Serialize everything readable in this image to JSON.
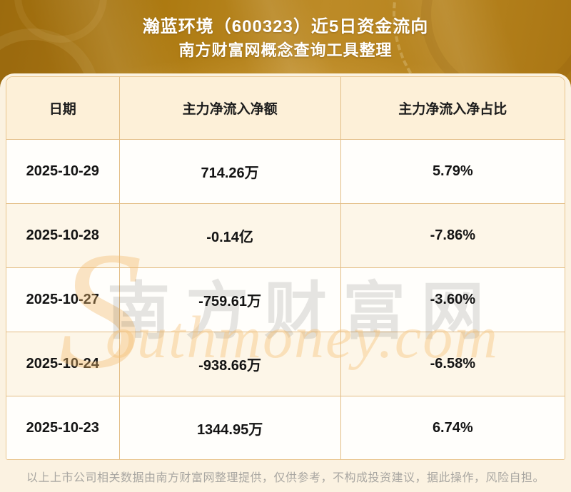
{
  "banner": {
    "title_line1": "瀚蓝环境（600323）近5日资金流向",
    "title_line2": "南方财富网概念查询工具整理"
  },
  "chart_data": {
    "type": "table",
    "title": "瀚蓝环境（600323）近5日资金流向",
    "subtitle": "南方财富网概念查询工具整理",
    "columns": [
      "日期",
      "主力净流入净额",
      "主力净流入净占比"
    ],
    "rows": [
      [
        "2025-10-29",
        "714.26万",
        "5.79%"
      ],
      [
        "2025-10-28",
        "-0.14亿",
        "-7.86%"
      ],
      [
        "2025-10-27",
        "-759.61万",
        "-3.60%"
      ],
      [
        "2025-10-24",
        "-938.66万",
        "-6.58%"
      ],
      [
        "2025-10-23",
        "1344.95万",
        "6.74%"
      ]
    ],
    "dates": [
      "2025-10-29",
      "2025-10-28",
      "2025-10-27",
      "2025-10-24",
      "2025-10-23"
    ],
    "main_net_inflow_wan": [
      714.26,
      -1400,
      -759.61,
      -938.66,
      1344.95
    ],
    "main_net_inflow_pct": [
      5.79,
      -7.86,
      -3.6,
      -6.58,
      6.74
    ]
  },
  "watermark": {
    "cn": "南方财富网",
    "en_initial": "S",
    "en_rest": "outhmoney.com"
  },
  "footer": {
    "disclaimer": "以上上市公司相关数据由南方财富网整理提供，仅供参考，不构成投资建议，据此操作，风险自担。"
  },
  "colors": {
    "banner_gold_dark": "#9c6b0e",
    "banner_gold_light": "#bd8b27",
    "page_bg": "#fbf2e1",
    "header_row_bg": "#fdf0d8",
    "row_bg": "#fffefb",
    "row_alt_bg": "#fdf6e8",
    "table_border": "#e3bd85",
    "title_text": "#ffffff",
    "cell_text": "#141414",
    "footer_text": "#a9a7a2",
    "watermark_cn": "#1a1a1a",
    "watermark_en": "#f3b969"
  }
}
